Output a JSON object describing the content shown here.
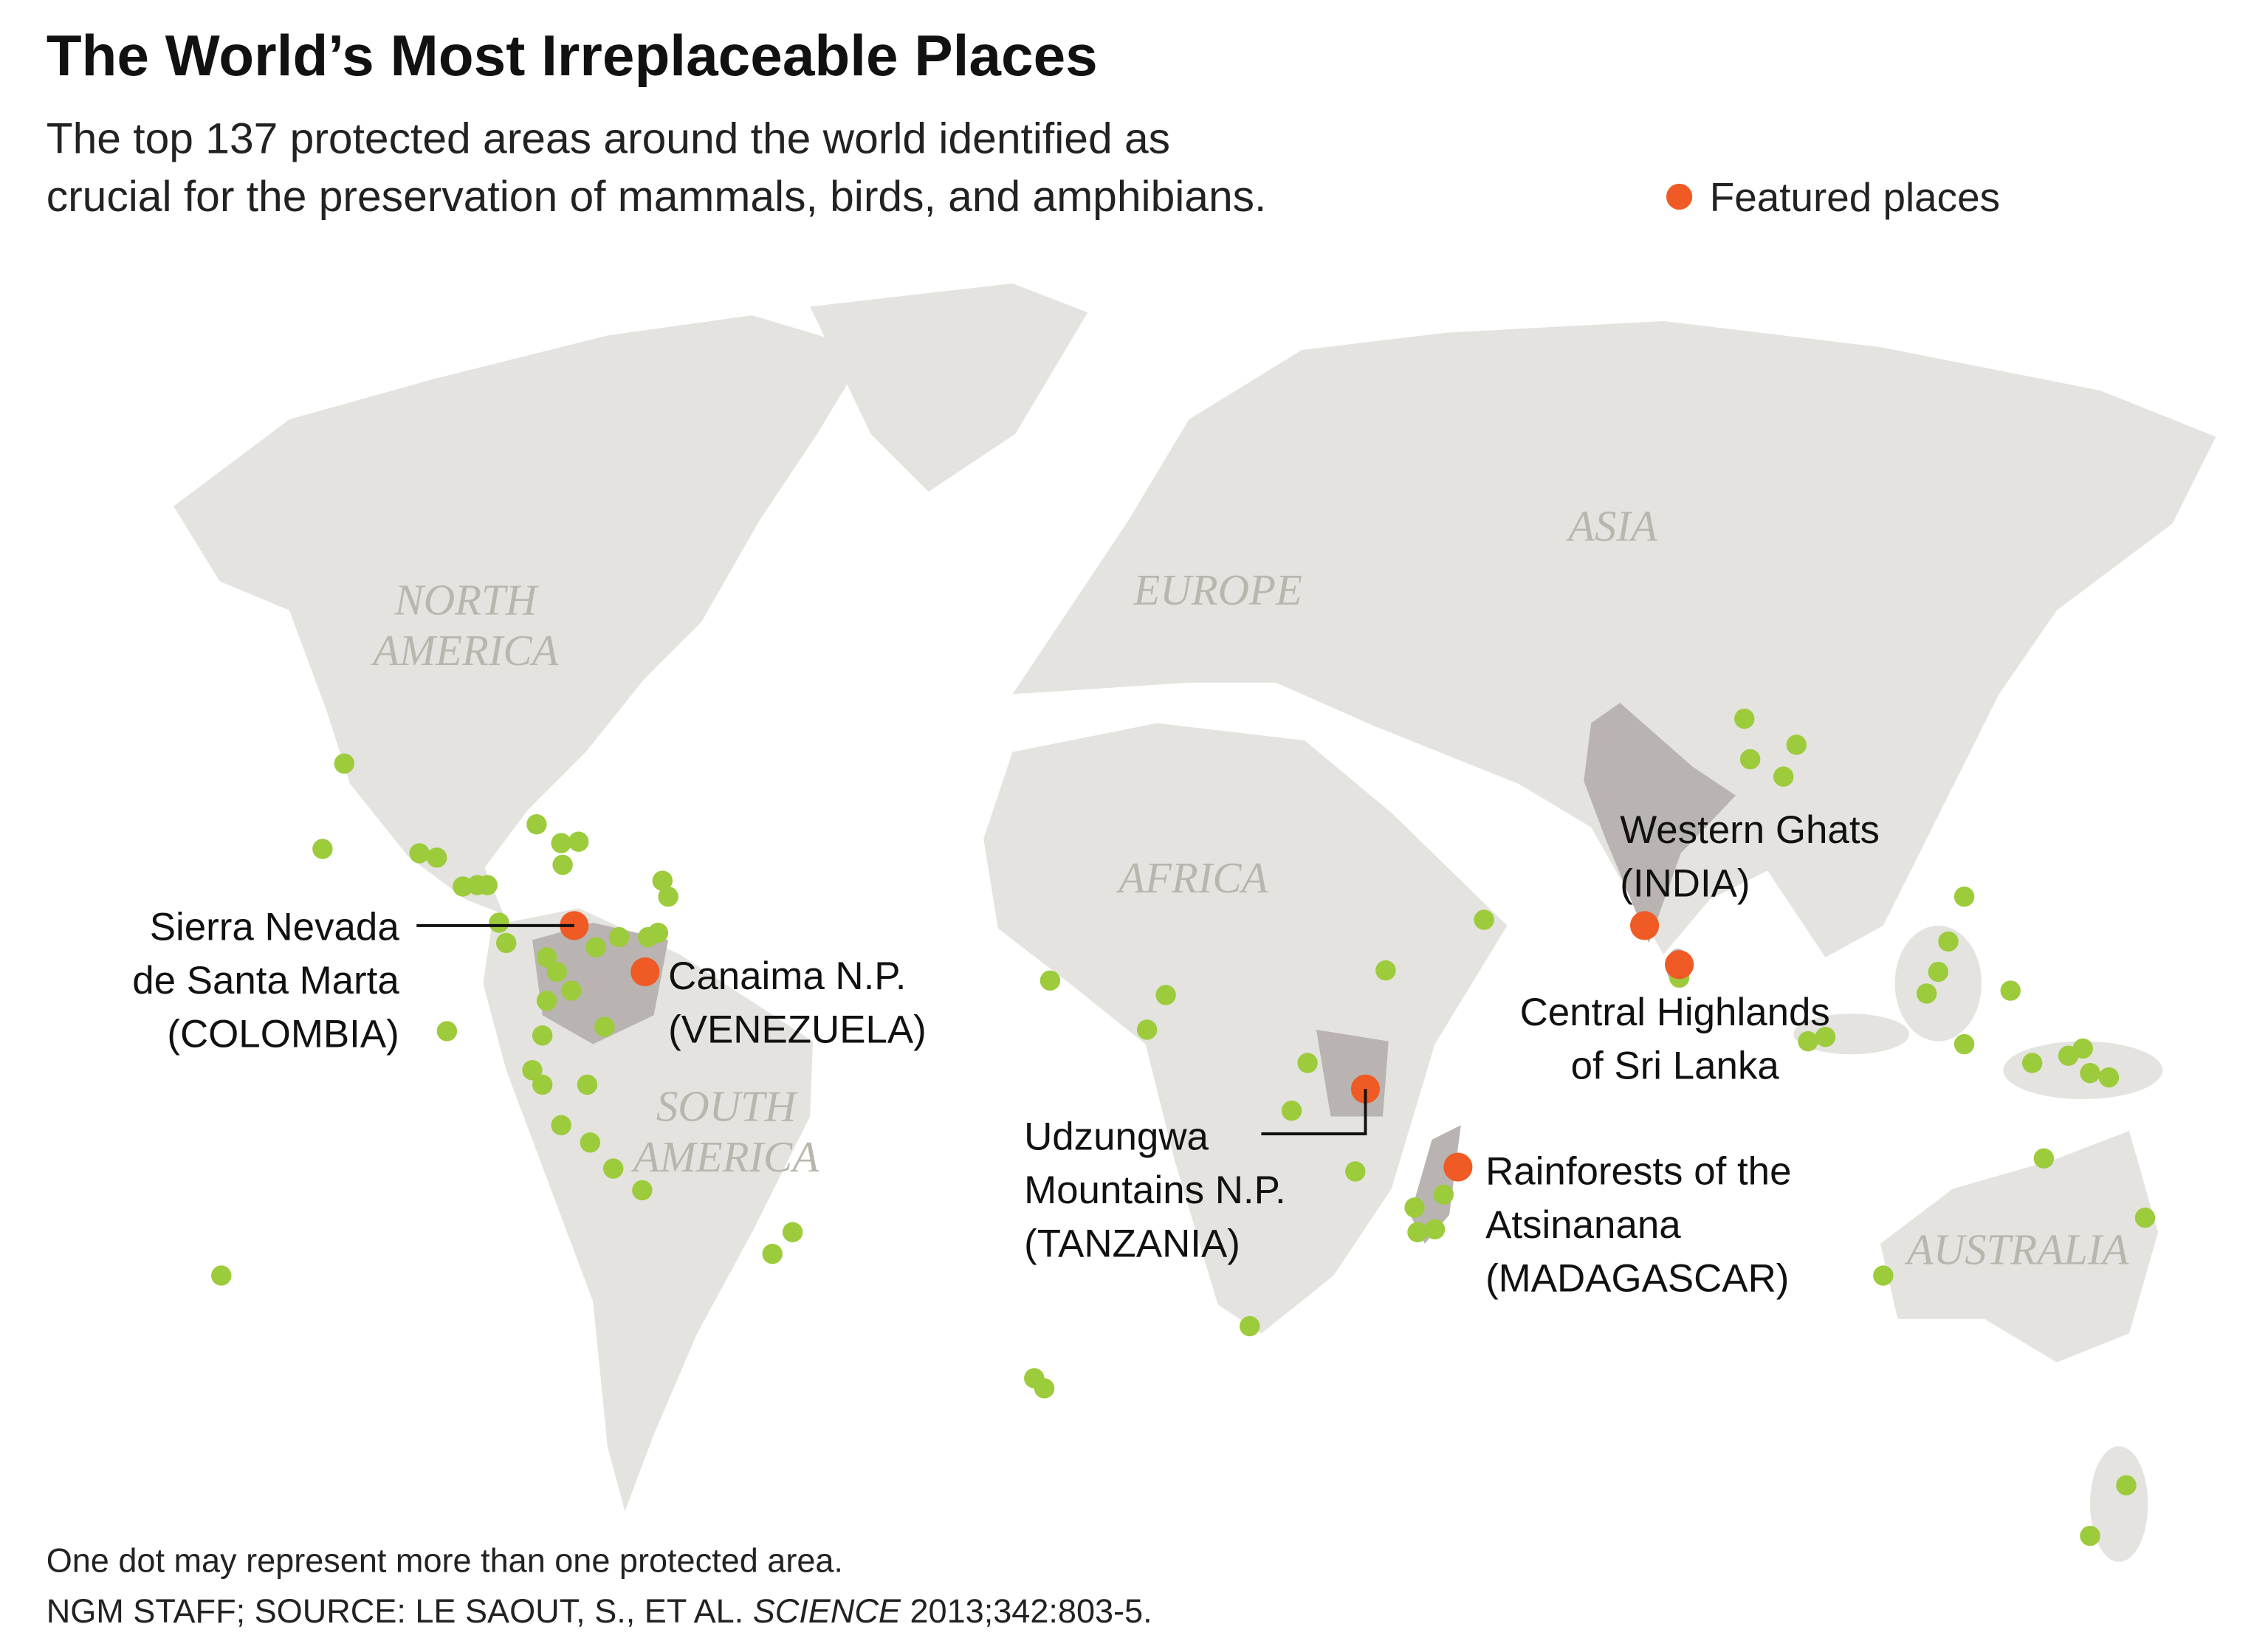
{
  "title": "The World’s Most Irreplaceable Places",
  "subtitle": [
    "The top 137 protected areas around the world identified as",
    "crucial for the preservation of mammals, birds, and amphibians."
  ],
  "legend": "Featured places",
  "regions": [
    {
      "lines": [
        "NORTH",
        "AMERICA"
      ]
    },
    {
      "lines": [
        "EUROPE"
      ]
    },
    {
      "lines": [
        "ASIA"
      ]
    },
    {
      "lines": [
        "AFRICA"
      ]
    },
    {
      "lines": [
        "SOUTH",
        "AMERICA"
      ]
    },
    {
      "lines": [
        "AUSTRALIA"
      ]
    }
  ],
  "places": [
    {
      "lines": [
        "Sierra Nevada",
        "de Santa Marta",
        "(COLOMBIA)"
      ]
    },
    {
      "lines": [
        "Canaima N.P.",
        "(VENEZUELA)"
      ]
    },
    {
      "lines": [
        "Udzungwa",
        "Mountains N.P.",
        "(TANZANIA)"
      ]
    },
    {
      "lines": [
        "Rainforests of the",
        "Atsinanana",
        "(MADAGASCAR)"
      ]
    },
    {
      "lines": [
        "Western Ghats",
        "(INDIA)"
      ]
    },
    {
      "lines": [
        "Central Highlands",
        "of Sri Lanka"
      ]
    }
  ],
  "footnotes": {
    "note": "One dot may represent more than one protected area.",
    "credit": "NGM STAFF; SOURCE: LE SAOUT, S., ET AL.",
    "journal": "SCIENCE",
    "citation": "2013;342:803-5."
  }
}
